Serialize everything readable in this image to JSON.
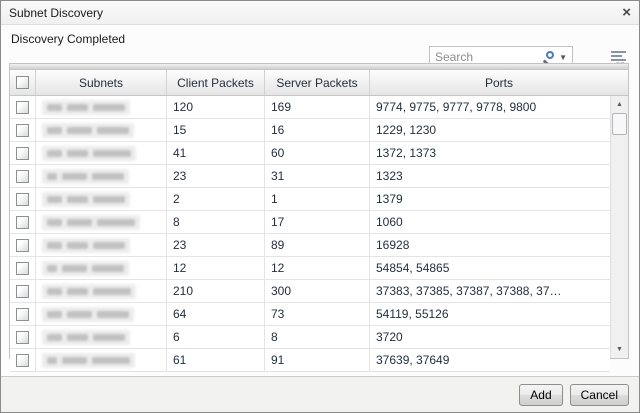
{
  "window": {
    "title": "Subnet Discovery",
    "close_glyph": "×"
  },
  "status": {
    "text": "Discovery Completed"
  },
  "toolbar": {
    "search_placeholder": "Search",
    "search_caret_glyph": "▼"
  },
  "icons": {
    "scroll_up_glyph": "▲",
    "scroll_down_glyph": "▼"
  },
  "table": {
    "subnets_blurred": true,
    "columns": [
      "",
      "Subnets",
      "Client Packets",
      "Server Packets",
      "Ports"
    ],
    "rows": [
      {
        "client_packets": "120",
        "server_packets": "169",
        "ports": "9774, 9775, 9777, 9778, 9800"
      },
      {
        "client_packets": "15",
        "server_packets": "16",
        "ports": "1229, 1230"
      },
      {
        "client_packets": "41",
        "server_packets": "60",
        "ports": "1372, 1373"
      },
      {
        "client_packets": "23",
        "server_packets": "31",
        "ports": "1323"
      },
      {
        "client_packets": "2",
        "server_packets": "1",
        "ports": "1379"
      },
      {
        "client_packets": "8",
        "server_packets": "17",
        "ports": "1060"
      },
      {
        "client_packets": "23",
        "server_packets": "89",
        "ports": "16928"
      },
      {
        "client_packets": "12",
        "server_packets": "12",
        "ports": "54854, 54865"
      },
      {
        "client_packets": "210",
        "server_packets": "300",
        "ports": "37383, 37385, 37387, 37388, 37…"
      },
      {
        "client_packets": "64",
        "server_packets": "73",
        "ports": "54119, 55126"
      },
      {
        "client_packets": "6",
        "server_packets": "8",
        "ports": "3720"
      },
      {
        "client_packets": "61",
        "server_packets": "91",
        "ports": "37639, 37649"
      }
    ]
  },
  "footer": {
    "add_label": "Add",
    "cancel_label": "Cancel"
  },
  "colors": {
    "dialog_border": "#8a8a8a",
    "header_text": "#1f2d3d",
    "search_lens_blue": "#4d7eb4",
    "footer_bg": "#f2f2f1"
  }
}
